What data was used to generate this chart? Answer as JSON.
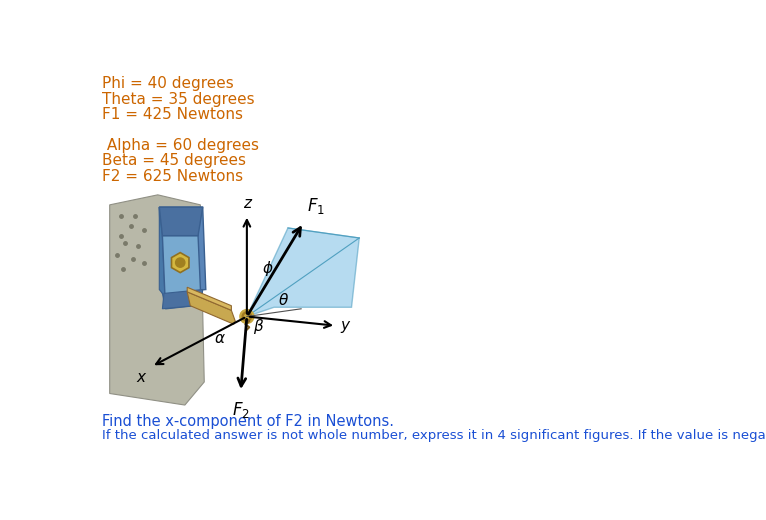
{
  "bg_color": "#ffffff",
  "text_color_orange": "#cc6600",
  "text_color_blue": "#1a4fd4",
  "params_left": [
    "Phi = 40 degrees",
    "Theta = 35 degrees",
    "F1 = 425 Newtons",
    "",
    " Alpha = 60 degrees",
    "Beta = 45 degrees",
    "F2 = 625 Newtons"
  ],
  "question_line1": "Find the x-component of F2 in Newtons.",
  "question_line2": "If the calculated answer is not whole number, express it in 4 significant figures. If the value is negative, include a negative sign.",
  "fig_width": 7.66,
  "fig_height": 5.2,
  "dpi": 100,
  "ox": 195,
  "oy": 330,
  "diagram_scale": 0.75
}
